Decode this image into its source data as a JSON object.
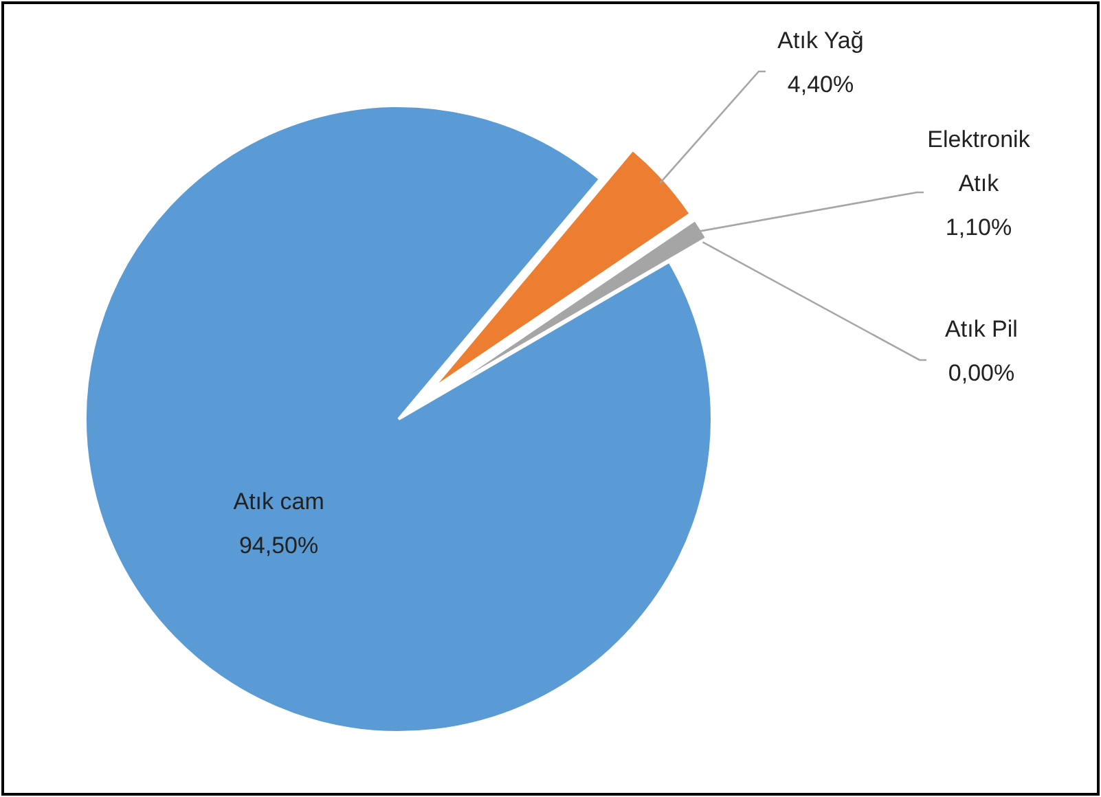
{
  "chart_data": {
    "type": "pie",
    "categories": [
      "Atık Yağ",
      "Elektronik Atık",
      "Atık Pil",
      "Atık cam"
    ],
    "values": [
      4.4,
      1.1,
      0.0,
      94.5
    ],
    "colors": [
      "#ed7d31",
      "#a5a5a5",
      "#ffc000",
      "#5b9bd5"
    ],
    "value_labels": [
      "4,40%",
      "1,10%",
      "0,00%",
      "94,50%"
    ]
  }
}
